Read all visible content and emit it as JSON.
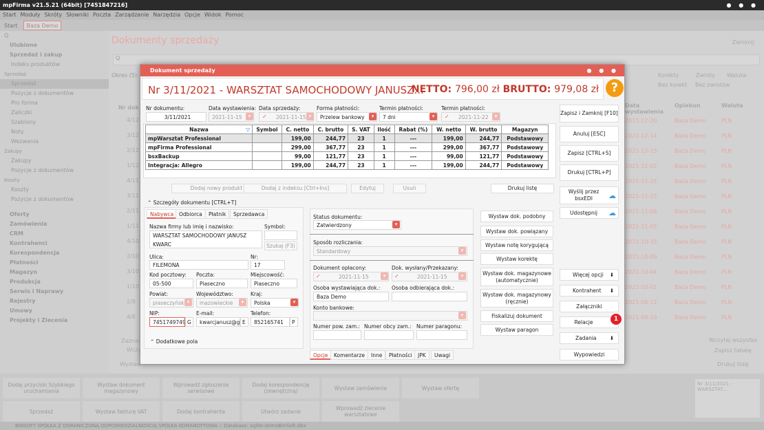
{
  "app": {
    "title": "mpFirma v21.5.21 (64bit) [7451847216]",
    "menu": [
      "Start",
      "Moduły",
      "Skróty",
      "Słowniki",
      "Poczta",
      "Zarządzanie",
      "Narzędzia",
      "Opcje",
      "Widok",
      "Pomoc"
    ],
    "tabs": [
      "Start",
      "Baza Demo"
    ]
  },
  "sidebar": {
    "search": "Q",
    "items": [
      {
        "t": "Ulubione",
        "k": "hd"
      },
      {
        "t": "Sprzedaż i zakup",
        "k": "hd"
      },
      {
        "t": "Indeks produktów",
        "k": "i"
      },
      {
        "t": "Sprzedaż",
        "k": "sm"
      },
      {
        "t": "Sprzedaż",
        "k": "sel"
      },
      {
        "t": "Pozycje z dokumentów",
        "k": "i"
      },
      {
        "t": "Pro forma",
        "k": "i"
      },
      {
        "t": "Zaliczki",
        "k": "i"
      },
      {
        "t": "Szablony",
        "k": "i"
      },
      {
        "t": "Noty",
        "k": "i"
      },
      {
        "t": "Wezwania",
        "k": "i"
      },
      {
        "t": "Zakupy",
        "k": "sm"
      },
      {
        "t": "Zakupy",
        "k": "i"
      },
      {
        "t": "Pozycje z dokumentów",
        "k": "i"
      },
      {
        "t": "Koszty",
        "k": "sm"
      },
      {
        "t": "Koszty",
        "k": "i"
      },
      {
        "t": "Pozycje z dokumentów",
        "k": "i"
      },
      {
        "t": "",
        "k": "sp"
      },
      {
        "t": "Oferty",
        "k": "hd"
      },
      {
        "t": "Zamówienia",
        "k": "hd"
      },
      {
        "t": "CRM",
        "k": "hd"
      },
      {
        "t": "Kontrahenci",
        "k": "hd"
      },
      {
        "t": "Korespondencja",
        "k": "hd"
      },
      {
        "t": "Płatności",
        "k": "hd"
      },
      {
        "t": "Magazyn",
        "k": "hd"
      },
      {
        "t": "Produkcja",
        "k": "hd"
      },
      {
        "t": "Serwis i Naprawy",
        "k": "hd"
      },
      {
        "t": "Rejestry",
        "k": "hd"
      },
      {
        "t": "Umowy",
        "k": "hd"
      },
      {
        "t": "Projekty i Zlecenia",
        "k": "hd"
      }
    ]
  },
  "bg": {
    "title": "Dokumenty sprzedaży",
    "close": "Zamknij",
    "okres": "Okres (5):",
    "korekty": "Korekty",
    "zwroty": "Zwroty",
    "waluta": "Waluta:",
    "bez_korekt": "Bez korekt",
    "bez_zwrotow": "Bez zwrotów",
    "cols": [
      "Data wystawienia",
      "Opiekun",
      "Waluta"
    ],
    "rows": [
      [
        "2021-12-20",
        "Baza Demo",
        "PLN"
      ],
      [
        "2021-12-14",
        "Baza Demo",
        "PLN"
      ],
      [
        "2021-12-15",
        "Baza Demo",
        "PLN"
      ],
      [
        "2021-12-02",
        "Baza Demo",
        "PLN"
      ],
      [
        "2021-11-25",
        "Baza Demo",
        "PLN"
      ],
      [
        "2021-11-15",
        "Baza Demo",
        "PLN"
      ],
      [
        "2021-11-08",
        "Baza Demo",
        "PLN"
      ],
      [
        "2021-11-05",
        "Baza Demo",
        "PLN"
      ],
      [
        "2021-10-15",
        "Baza Demo",
        "PLN"
      ],
      [
        "2021-10-09",
        "Baza Demo",
        "PLN"
      ],
      [
        "2021-10-04",
        "Baza Demo",
        "PLN"
      ],
      [
        "2021-10-01",
        "Baza Demo",
        "PLN"
      ],
      [
        "2021-08-12",
        "Baza Demo",
        "PLN"
      ],
      [
        "2021-09-10",
        "Baza Demo",
        "PLN"
      ]
    ],
    "nr_col": "Nr dok",
    "left_nr": [
      "4/12",
      "3/12",
      "2/12",
      "1/12",
      "4/11",
      "3/11",
      "2/11",
      "1/11",
      "4/10",
      "2/10",
      "3/10",
      "1/10",
      "2/8",
      "4/8"
    ],
    "zaznacz": "Zaznacz",
    "wczyt": "Wczy",
    "wczytaj": "Wczytaj wszystko",
    "zapisz_tabele": "Zapisz tabelę",
    "drukuj_liste": "Drukuj listę",
    "wystaw": "Wystaw"
  },
  "bottom": {
    "buttons": [
      "Dodaj przyciski Szybkiego uruchamiania",
      "Wystaw dokument magazynowy",
      "Wprowadź zgłoszenie serwisowe",
      "Dodaj korespondencję (zewnętrzną)",
      "Wystaw zamówienie",
      "Wystaw ofertę",
      "Sprzedaż",
      "Wystaw fakturę VAT",
      "Dodaj kontrahenta",
      "Utwórz zadanie",
      "Wprowadź zlecenie warsztatowe"
    ],
    "thumb": "Nr 3/11/2021 - WARSZTAT...",
    "status": "BINSOFT SPÓŁKA Z OGRANICZONĄ ODPOWIEDZIALNOŚCIĄ SPÓŁKA KOMANDYTOWA :: Database: sqlite:demoBinSoft.dbx"
  },
  "dialog": {
    "title": "Dokument sprzedaży",
    "header": {
      "title": "Nr 3/11/2021 - WARSZTAT SAMOCHODOWY JANUSZ...",
      "netto_label": "NETTO:",
      "netto": "796,00 zł",
      "brutto_label": "BRUTTO:",
      "brutto": "979,08 zł",
      "help": "?"
    },
    "fields": {
      "nr_label": "Nr dokumentu:",
      "nr": "3/11/2021",
      "data_wyst_label": "Data wystawienia:",
      "data_wyst": "2021-11-15",
      "data_sprz_label": "Data sprzedaży:",
      "data_sprz": "2021-11-15",
      "forma_label": "Forma płatności:",
      "forma": "Przelew bankowy",
      "termin_label": "Termin płatności:",
      "termin": "7 dni",
      "termin2_label": "Termin płatności:",
      "termin2": "2021-11-22"
    },
    "table": {
      "cols": [
        "Nazwa",
        "Symbol",
        "C. netto",
        "C. brutto",
        "S. VAT",
        "Ilość",
        "Rabat (%)",
        "W. netto",
        "W. brutto",
        "Magazyn"
      ],
      "rows": [
        [
          "mpWarsztat Professional",
          "",
          "199,00",
          "244,77",
          "23",
          "1",
          "---",
          "199,00",
          "244,77",
          "Podstawowy"
        ],
        [
          "mpFirma Professional",
          "",
          "299,00",
          "367,77",
          "23",
          "1",
          "---",
          "299,00",
          "367,77",
          "Podstawowy"
        ],
        [
          "bsxBackup",
          "",
          "99,00",
          "121,77",
          "23",
          "1",
          "---",
          "99,00",
          "121,77",
          "Podstawowy"
        ],
        [
          "Integracja: Allegro",
          "",
          "199,00",
          "244,77",
          "23",
          "1",
          "---",
          "199,00",
          "244,77",
          "Podstawowy"
        ]
      ]
    },
    "table_buttons": [
      "Dodaj nowy produkt [Ins]",
      "Dodaj z indeksu [Ctrl+Ins]",
      "Edytuj",
      "Usuń",
      "Drukuj listę"
    ],
    "szczegoly": "Szczegóły dokumentu [CTRL+T]",
    "tabs": [
      "Nabywca",
      "Odbiorca",
      "Płatnik",
      "Sprzedawca"
    ],
    "buyer": {
      "nazwa_label": "Nazwa firmy lub imię i nazwisko:",
      "nazwa": "WARSZTAT SAMOCHODOWY JANUSZ KWARC",
      "symbol_label": "Symbol:",
      "szukaj": "Szukaj (F3)",
      "ulica_label": "Ulica:",
      "ulica": "FILEMONA",
      "nr_label": "Nr:",
      "nr": "17",
      "kod_label": "Kod pocztowy:",
      "kod": "05-500",
      "poczta_label": "Poczta:",
      "poczta": "Piaseczno",
      "miejsc_label": "Miejscowość:",
      "miejsc": "Piaseczno",
      "powiat_label": "Powiat:",
      "powiat": "piaseczyński",
      "woj_label": "Województwo:",
      "woj": "mazowieckie",
      "kraj_label": "Kraj:",
      "kraj": "Polska",
      "nip_label": "NIP:",
      "nip": "7451749749",
      "nip_g": "G",
      "email_label": "E-mail:",
      "email": "kwarcjanusz@gm",
      "email_e": "E",
      "tel_label": "Telefon:",
      "tel": "852165741",
      "tel_p": "P",
      "dodatkowe": "Dodatkowe pola"
    },
    "status": {
      "status_label": "Status dokumentu:",
      "status": "Zatwierdzony",
      "sposob_label": "Sposób rozliczania:",
      "sposob": "Standardowy",
      "oplacony_label": "Dokument opłacony:",
      "oplacony": "2021-11-15",
      "wyslany_label": "Dok. wysłany/Przekazany:",
      "wyslany": "2021-11-15",
      "wyst_label": "Osoba wystawiająca dok.:",
      "wyst": "Baza Demo",
      "odb_label": "Osoba odbierająca dok.:",
      "konto_label": "Konto bankowe:",
      "pow_label": "Numer pow. zam.:",
      "obcy_label": "Numer obcy zam.:",
      "parag_label": "Numer paragonu:"
    },
    "bottom_tabs": [
      "Opcje",
      "Komentarze",
      "Inne",
      "Płatności",
      "JPK",
      "Uwagi"
    ],
    "actions_mid": [
      "Wystaw dok. podobny",
      "Wystaw dok. powiązany",
      "Wystaw notę korygującą",
      "Wystaw korektę",
      "Wystaw dok. magazynowe (automatycznie)",
      "Wystaw dok. magazynowy (ręcznie)",
      "Fiskalizuj dokument",
      "Wystaw paragon"
    ],
    "actions_right": [
      "Zapisz i Zamknij [F10]",
      "Anuluj [ESC]",
      "Zapisz [CTRL+S]",
      "Drukuj [CTRL+P]",
      "Wyślij przez bsxEDI",
      "Udostępnij"
    ],
    "actions_right2": [
      "Więcej opcji",
      "Kontrahent",
      "Załączniki",
      "Relacje",
      "Zadania",
      "Wypowiedzi"
    ],
    "relacje_badge": "1"
  },
  "colors": {
    "accent": "#e35f55",
    "orange": "#f39c12"
  }
}
